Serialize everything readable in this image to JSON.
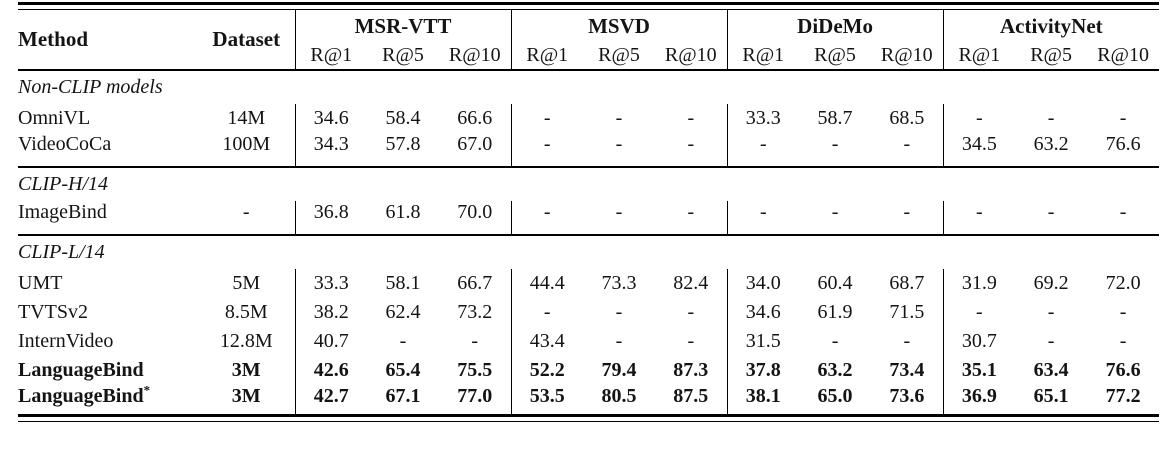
{
  "table": {
    "header": {
      "method": "Method",
      "dataset": "Dataset"
    },
    "groups": [
      {
        "name": "MSR-VTT",
        "metrics": [
          "R@1",
          "R@5",
          "R@10"
        ]
      },
      {
        "name": "MSVD",
        "metrics": [
          "R@1",
          "R@5",
          "R@10"
        ]
      },
      {
        "name": "DiDeMo",
        "metrics": [
          "R@1",
          "R@5",
          "R@10"
        ]
      },
      {
        "name": "ActivityNet",
        "metrics": [
          "R@1",
          "R@5",
          "R@10"
        ]
      }
    ],
    "sections": [
      {
        "label": "Non-CLIP models",
        "rows": [
          {
            "method": "OmniVL",
            "dataset": "14M",
            "values": [
              "34.6",
              "58.4",
              "66.6",
              "-",
              "-",
              "-",
              "33.3",
              "58.7",
              "68.5",
              "-",
              "-",
              "-"
            ]
          },
          {
            "method": "VideoCoCa",
            "dataset": "100M",
            "values": [
              "34.3",
              "57.8",
              "67.0",
              "-",
              "-",
              "-",
              "-",
              "-",
              "-",
              "34.5",
              "63.2",
              "76.6"
            ]
          }
        ]
      },
      {
        "label": "CLIP-H/14",
        "rows": [
          {
            "method": "ImageBind",
            "dataset": "-",
            "values": [
              "36.8",
              "61.8",
              "70.0",
              "-",
              "-",
              "-",
              "-",
              "-",
              "-",
              "-",
              "-",
              "-"
            ]
          }
        ]
      },
      {
        "label": "CLIP-L/14",
        "rows": [
          {
            "method": "UMT",
            "dataset": "5M",
            "values": [
              "33.3",
              "58.1",
              "66.7",
              "44.4",
              "73.3",
              "82.4",
              "34.0",
              "60.4",
              "68.7",
              "31.9",
              "69.2",
              "72.0"
            ]
          },
          {
            "method": "TVTSv2",
            "dataset": "8.5M",
            "values": [
              "38.2",
              "62.4",
              "73.2",
              "-",
              "-",
              "-",
              "34.6",
              "61.9",
              "71.5",
              "-",
              "-",
              "-"
            ]
          },
          {
            "method": "InternVideo",
            "dataset": "12.8M",
            "values": [
              "40.7",
              "-",
              "-",
              "43.4",
              "-",
              "-",
              "31.5",
              "-",
              "-",
              "30.7",
              "-",
              "-"
            ]
          },
          {
            "method": "LanguageBind",
            "dataset": "3M",
            "values": [
              "42.6",
              "65.4",
              "75.5",
              "52.2",
              "79.4",
              "87.3",
              "37.8",
              "63.2",
              "73.4",
              "35.1",
              "63.4",
              "76.6"
            ]
          },
          {
            "method": "LanguageBind",
            "method_sup": "*",
            "dataset": "3M",
            "values": [
              "42.7",
              "67.1",
              "77.0",
              "53.5",
              "80.5",
              "87.5",
              "38.1",
              "65.0",
              "73.6",
              "36.9",
              "65.1",
              "77.2"
            ]
          }
        ]
      }
    ],
    "colors": {
      "background": "#ffffff",
      "text": "#141414",
      "rule": "#000000"
    }
  }
}
